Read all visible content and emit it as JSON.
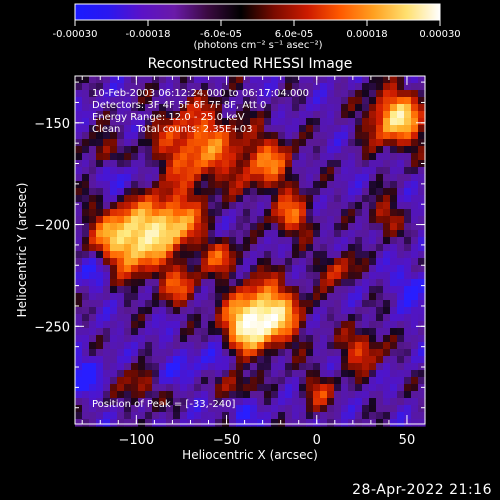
{
  "colorbar": {
    "tick_labels": [
      "-0.00030",
      "-0.00018",
      "-6.0e-05",
      "6.0e-05",
      "0.00018",
      "0.00030"
    ],
    "unit_label": "(photons cm⁻² s⁻¹ asec⁻²)",
    "colors": [
      "#1a1aff",
      "#2a18f0",
      "#5a12c8",
      "#6a1aa8",
      "#3a0a40",
      "#000000",
      "#7a0a00",
      "#cc1a00",
      "#ff5a00",
      "#ffa020",
      "#ffe070",
      "#ffffff"
    ]
  },
  "image": {
    "title": "Reconstructed RHESSI Image",
    "annotations": [
      "10-Feb-2003 06:12:24.000 to 06:17:04.000",
      "Detectors: 3F 4F 5F 6F 7F 8F, Att 0",
      "Energy Range: 12.0 - 25.0 keV",
      "Clean     Total counts: 2.35E+03"
    ],
    "peak_label": "Position of Peak = [-33,-240]",
    "xlabel": "Heliocentric X (arcsec)",
    "ylabel": "Heliocentric Y (arcsec)",
    "xticks": [
      {
        "value": -100,
        "label": "−100"
      },
      {
        "value": -50,
        "label": "−50"
      },
      {
        "value": 0,
        "label": "0"
      },
      {
        "value": 50,
        "label": "50"
      }
    ],
    "yticks": [
      {
        "value": -150,
        "label": "−150"
      },
      {
        "value": -200,
        "label": "−200"
      },
      {
        "value": -250,
        "label": "−250"
      }
    ],
    "xlim": [
      -134,
      60
    ],
    "ylim": [
      -298,
      -127
    ]
  },
  "footer": {
    "date": "28-Apr-2022 21:16"
  }
}
